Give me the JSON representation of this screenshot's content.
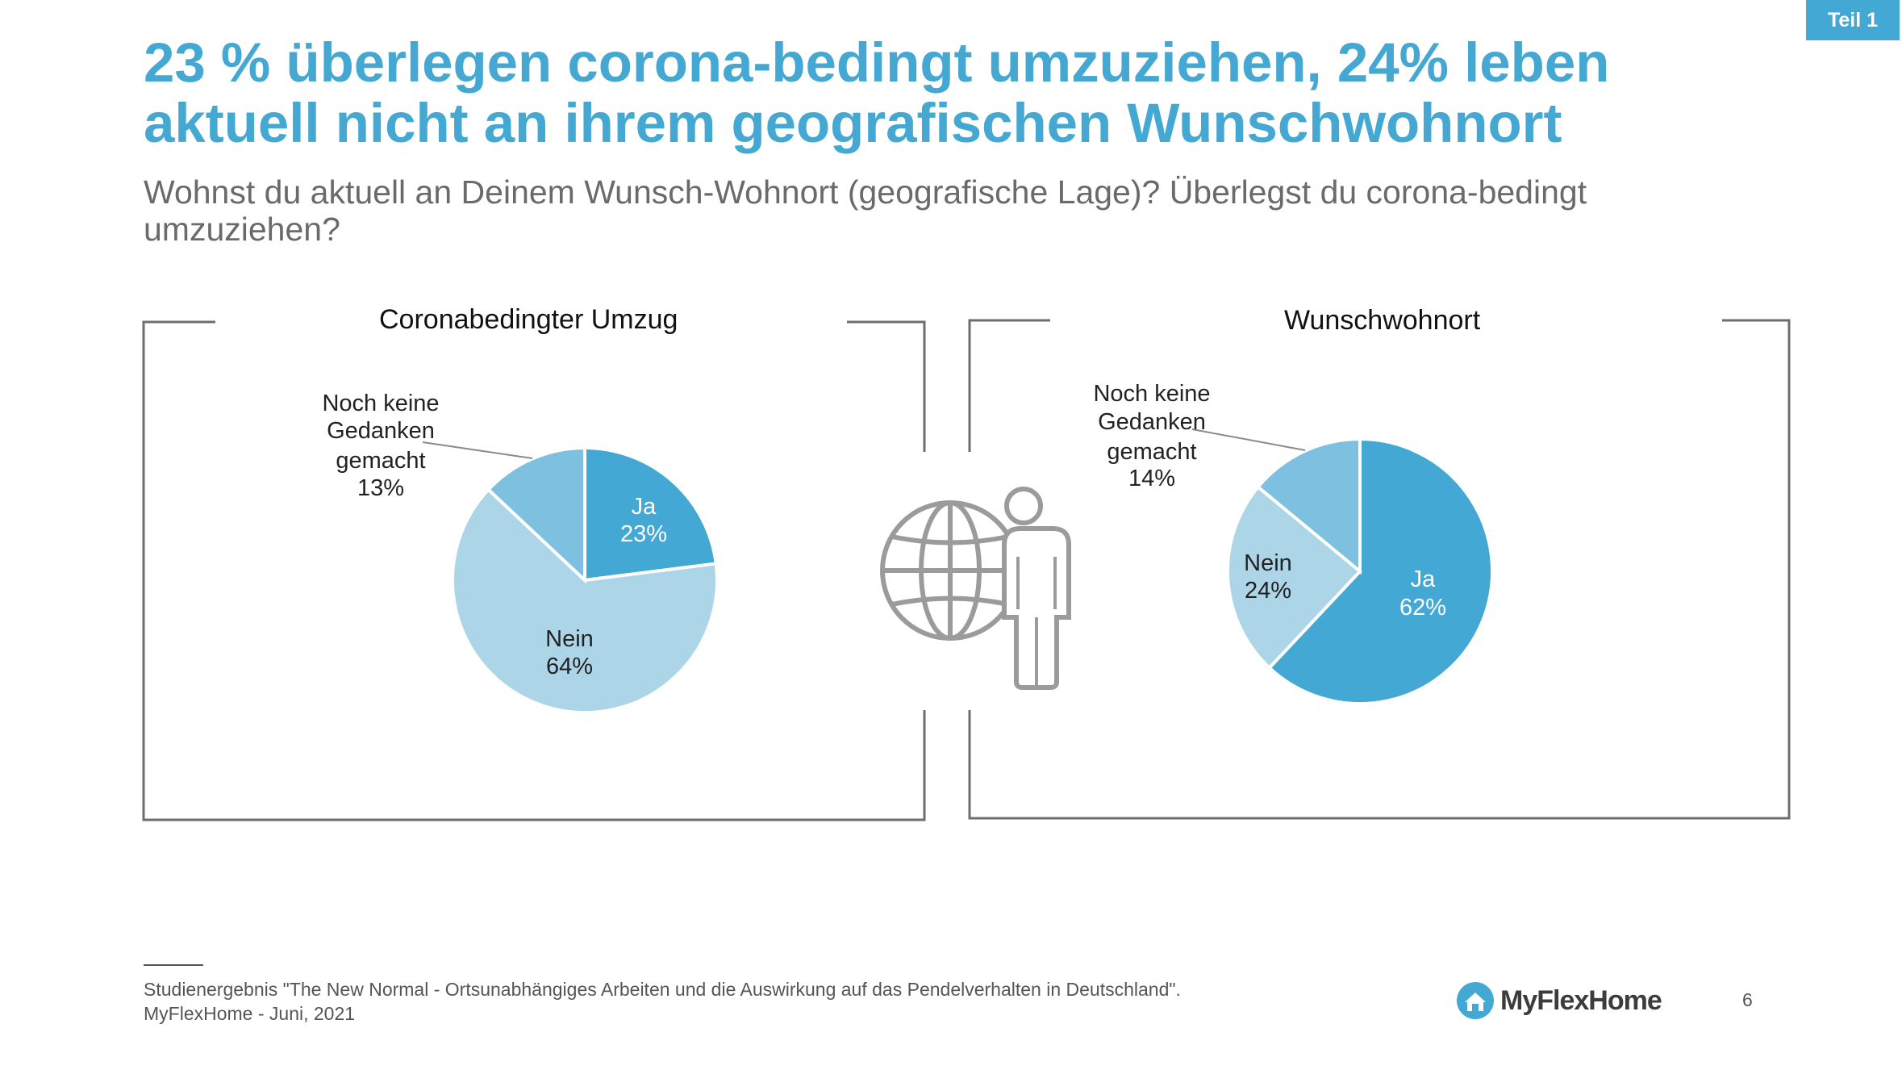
{
  "tag": "Teil 1",
  "title_lines": [
    "23 % überlegen corona-bedingt umzuziehen, 24% leben",
    "aktuell nicht an ihrem geografischen Wunschwohnort"
  ],
  "question": "Wohnst du aktuell an Deinem Wunsch-Wohnort (geografische Lage)? Überlegst du corona-bedingt umzuziehen?",
  "colors": {
    "accent": "#44a8d3",
    "slice_ja": "#43a8d3",
    "slice_nein": "#acd5e8",
    "slice_noch": "#7dc0e0"
  },
  "icon_center": "globe-person-icon",
  "chart_data": [
    {
      "type": "pie",
      "title": "Coronabedingter Umzug",
      "slices": [
        {
          "label": "Ja",
          "value": 23,
          "value_label": "23%"
        },
        {
          "label": "Nein",
          "value": 64,
          "value_label": "64%"
        },
        {
          "label": "Noch keine Gedanken gemacht",
          "value": 13,
          "value_label": "13%"
        }
      ]
    },
    {
      "type": "pie",
      "title": "Wunschwohnort",
      "slices": [
        {
          "label": "Ja",
          "value": 62,
          "value_label": "62%"
        },
        {
          "label": "Nein",
          "value": 24,
          "value_label": "24%"
        },
        {
          "label": "Noch keine Gedanken gemacht",
          "value": 14,
          "value_label": "14%"
        }
      ]
    }
  ],
  "footer": {
    "line1": "Studienergebnis \"The New Normal - Ortsunabhängiges Arbeiten und die Auswirkung auf das Pendelverhalten in Deutschland\".",
    "line2": "MyFlexHome - Juni, 2021"
  },
  "logo_text": "MyFlexHome",
  "page_number": "6"
}
